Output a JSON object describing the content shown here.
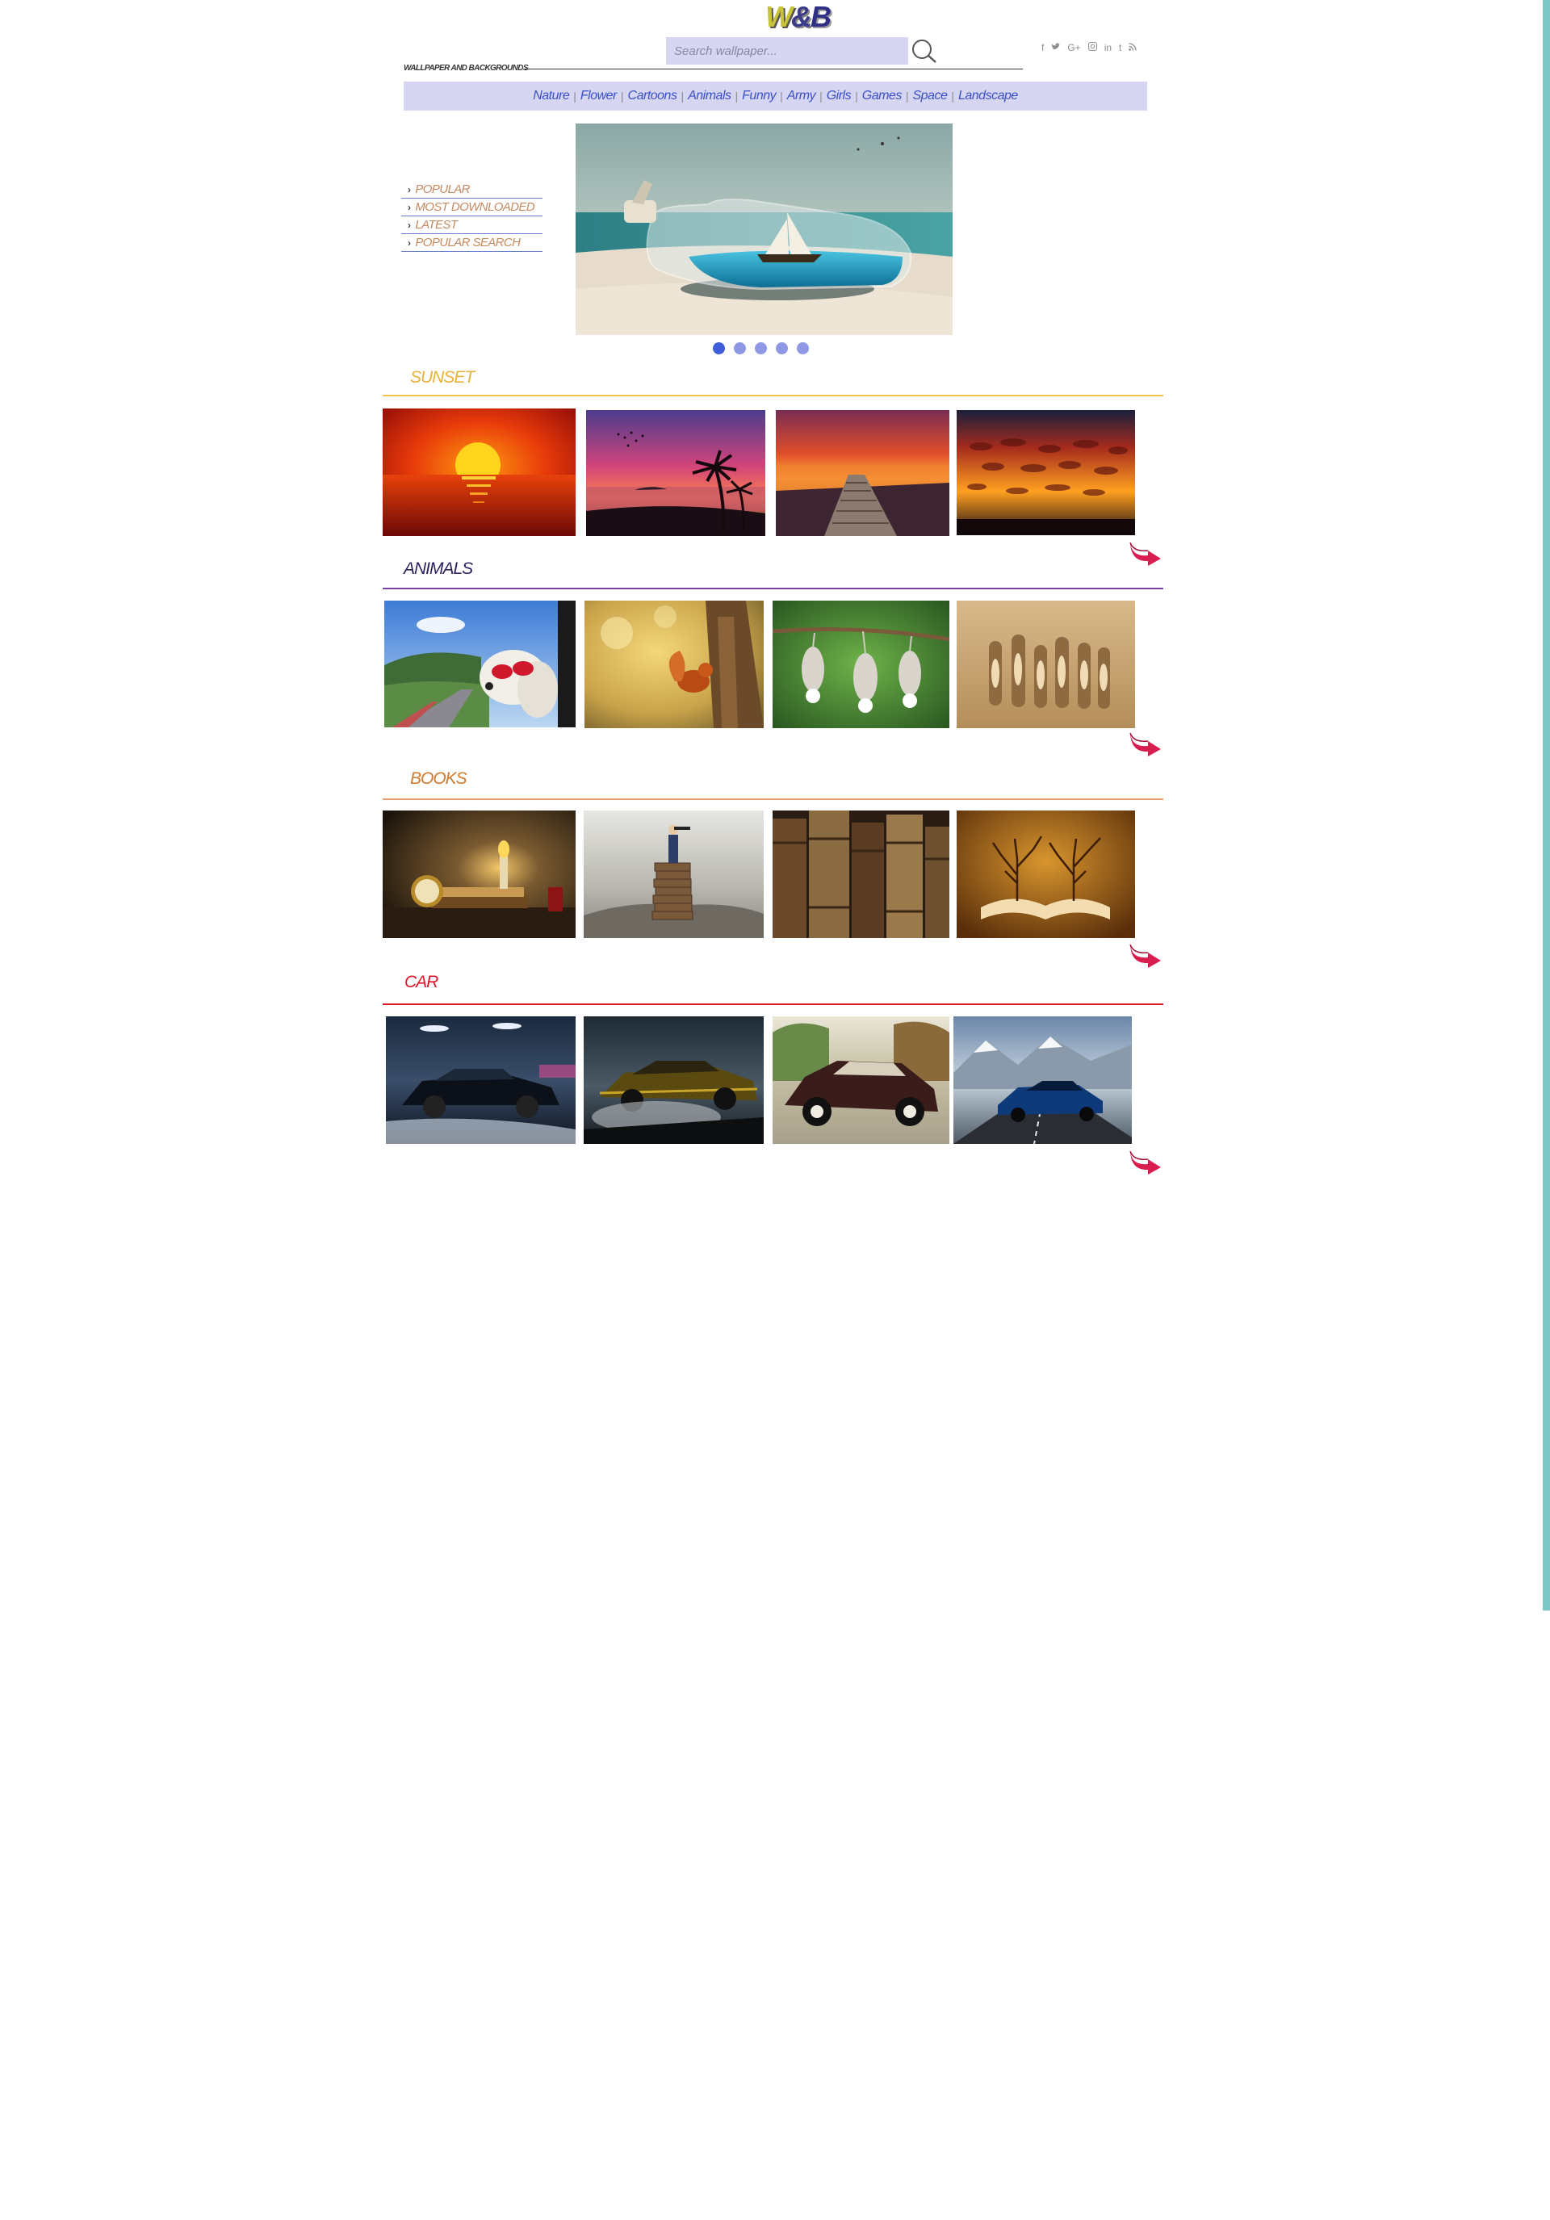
{
  "logo": {
    "w": "W",
    "amp": "&",
    "b": "B"
  },
  "header": {
    "tagline": "WALLPAPER AND BACKGROUNDS",
    "search_placeholder": "Search wallpaper..."
  },
  "social_icons": [
    "facebook-icon",
    "twitter-icon",
    "google-plus-icon",
    "instagram-icon",
    "linkedin-icon",
    "tumblr-icon",
    "rss-icon"
  ],
  "nav": {
    "items": [
      {
        "label": "Nature"
      },
      {
        "label": "Flower"
      },
      {
        "label": "Cartoons"
      },
      {
        "label": "Animals"
      },
      {
        "label": "Funny"
      },
      {
        "label": "Army"
      },
      {
        "label": "Girls"
      },
      {
        "label": "Games"
      },
      {
        "label": "Space"
      },
      {
        "label": "Landscape"
      }
    ]
  },
  "side_menu": {
    "items": [
      {
        "label": "POPULAR"
      },
      {
        "label": "MOST DOWNLOADED"
      },
      {
        "label": "LATEST"
      },
      {
        "label": "POPULAR SEARCH"
      }
    ]
  },
  "slider": {
    "slide_count": 5,
    "active_index": 0
  },
  "sections": [
    {
      "title": "SUNSET",
      "color": "#e8b23a"
    },
    {
      "title": "ANIMALS",
      "color": "#2d1f5e",
      "rule_color": "#7b3fa3"
    },
    {
      "title": "BOOKS",
      "color": "#d27a2e",
      "rule_color": "#e8a070"
    },
    {
      "title": "CAR",
      "color": "#e0162b"
    }
  ],
  "colors": {
    "accent": "#3b50c8",
    "nav_bg": "#d6d6f2",
    "more_arrow": "#d81e4f",
    "right_bar": "#7cc7c3"
  }
}
